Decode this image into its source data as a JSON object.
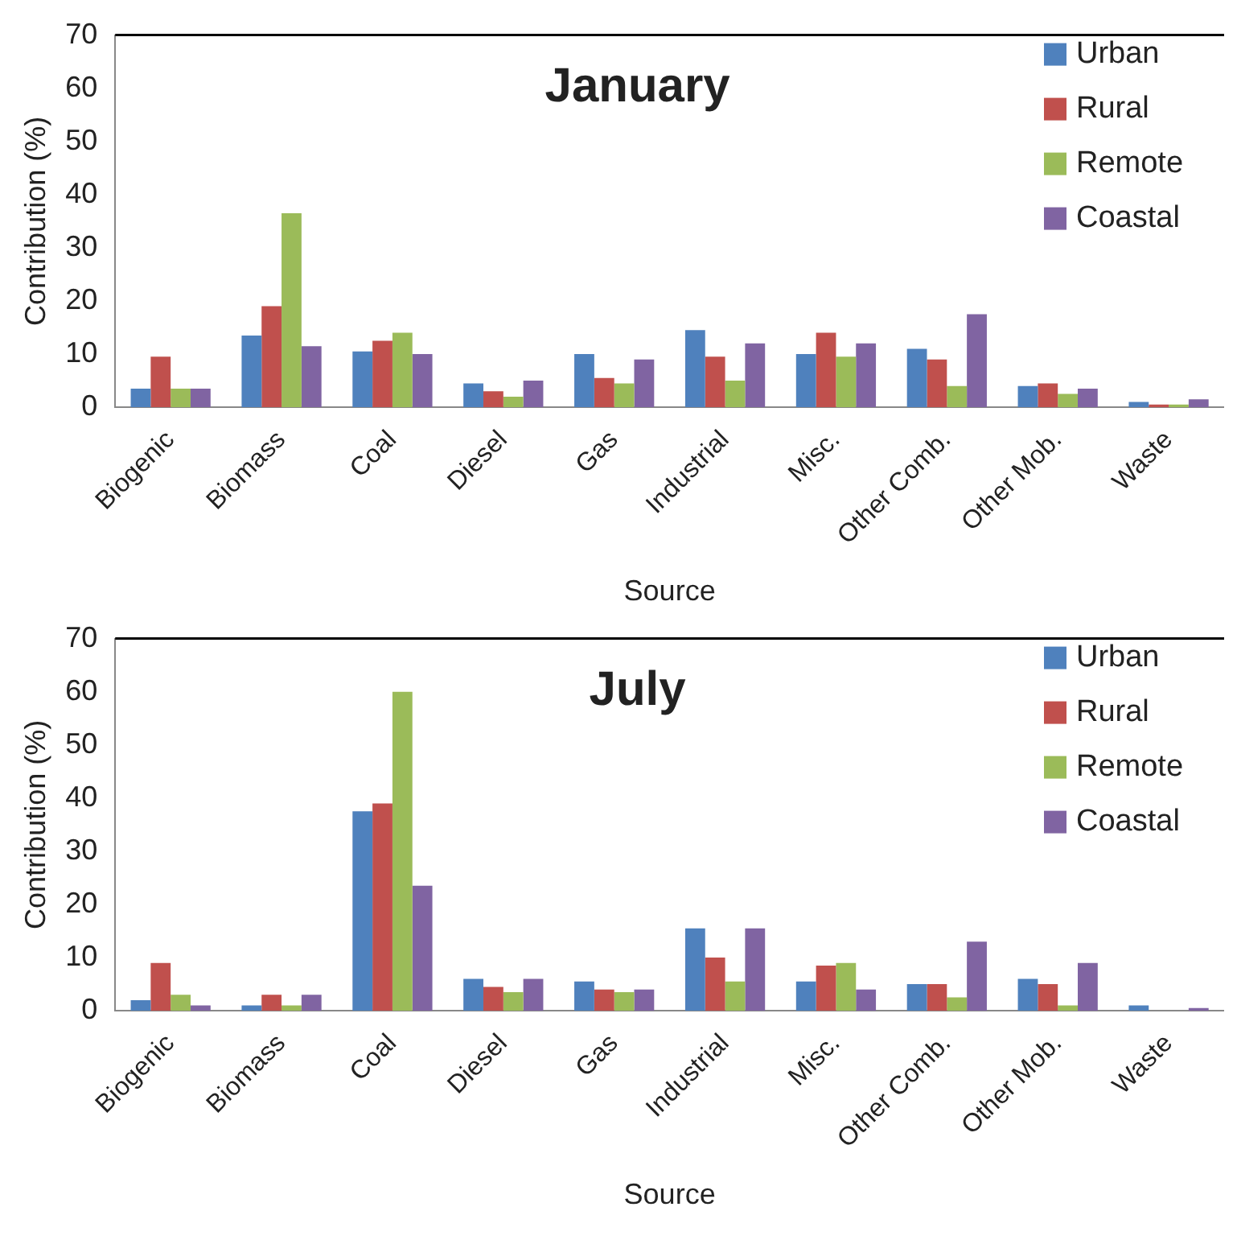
{
  "chart_data": [
    {
      "type": "bar",
      "title": "January",
      "xlabel": "Source",
      "ylabel": "Contribution (%)",
      "categories": [
        "Biogenic",
        "Biomass",
        "Coal",
        "Diesel",
        "Gas",
        "Industrial",
        "Misc.",
        "Other Comb.",
        "Other Mob.",
        "Waste"
      ],
      "series": [
        {
          "name": "Urban",
          "color": "#4f81bd",
          "values": [
            3.5,
            13.5,
            10.5,
            4.5,
            10,
            14.5,
            10,
            11,
            4,
            1
          ]
        },
        {
          "name": "Rural",
          "color": "#c0504d",
          "values": [
            9.5,
            19,
            12.5,
            3,
            5.5,
            9.5,
            14,
            9,
            4.5,
            0.5
          ]
        },
        {
          "name": "Remote",
          "color": "#9bbb59",
          "values": [
            3.5,
            36.5,
            14,
            2,
            4.5,
            5,
            9.5,
            4,
            2.5,
            0.5
          ]
        },
        {
          "name": "Coastal",
          "color": "#8064a2",
          "values": [
            3.5,
            11.5,
            10,
            5,
            9,
            12,
            12,
            17.5,
            3.5,
            1.5
          ]
        }
      ],
      "ylim": [
        0,
        70
      ],
      "yticks": [
        0,
        10,
        20,
        30,
        40,
        50,
        60,
        70
      ],
      "grid": false,
      "legend": "top right"
    },
    {
      "type": "bar",
      "title": "July",
      "xlabel": "Source",
      "ylabel": "Contribution (%)",
      "categories": [
        "Biogenic",
        "Biomass",
        "Coal",
        "Diesel",
        "Gas",
        "Industrial",
        "Misc.",
        "Other Comb.",
        "Other Mob.",
        "Waste"
      ],
      "series": [
        {
          "name": "Urban",
          "color": "#4f81bd",
          "values": [
            2,
            1,
            37.5,
            6,
            5.5,
            15.5,
            5.5,
            5,
            6,
            1
          ]
        },
        {
          "name": "Rural",
          "color": "#c0504d",
          "values": [
            9,
            3,
            39,
            4.5,
            4,
            10,
            8.5,
            5,
            5,
            null
          ]
        },
        {
          "name": "Remote",
          "color": "#9bbb59",
          "values": [
            3,
            1,
            60,
            3.5,
            3.5,
            5.5,
            9,
            2.5,
            1,
            null
          ]
        },
        {
          "name": "Coastal",
          "color": "#8064a2",
          "values": [
            1,
            3,
            23.5,
            6,
            4,
            15.5,
            4,
            13,
            9,
            0.5
          ]
        }
      ],
      "ylim": [
        0,
        70
      ],
      "yticks": [
        0,
        10,
        20,
        30,
        40,
        50,
        60,
        70
      ],
      "grid": false,
      "legend": "top right"
    }
  ]
}
